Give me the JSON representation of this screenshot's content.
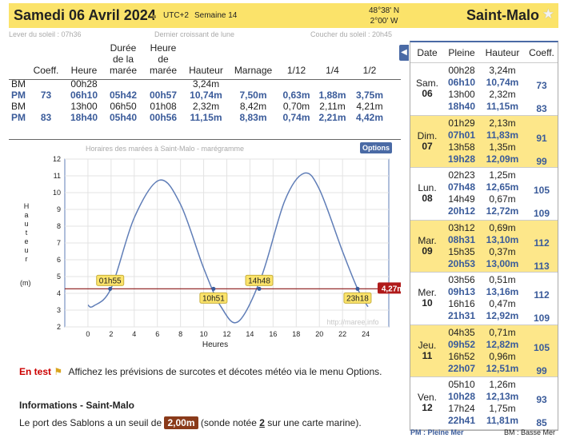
{
  "header": {
    "date": "Samedi 06 Avril 2024",
    "utc": "UTC+2",
    "week": "Semaine 14",
    "lat": "48°38' N",
    "lon": "2°00' W",
    "city": "Saint-Malo"
  },
  "sun": {
    "rise": "Lever du soleil : 07h36",
    "moon": "Dernier croissant de lune",
    "set": "Coucher du soleil : 20h45"
  },
  "table": {
    "headers": [
      "Coeff.",
      "Heure",
      "Durée de la marée",
      "Heure de marée",
      "Hauteur",
      "Marnage",
      "1/12",
      "1/4",
      "1/2"
    ],
    "rows": [
      {
        "type": "BM",
        "coeff": "",
        "heure": "00h28",
        "duree": "",
        "heure_maree": "",
        "hauteur": "3,24m",
        "marnage": "",
        "d12": "",
        "d4": "",
        "d2": ""
      },
      {
        "type": "PM",
        "coeff": "73",
        "heure": "06h10",
        "duree": "05h42",
        "heure_maree": "00h57",
        "hauteur": "10,74m",
        "marnage": "7,50m",
        "d12": "0,63m",
        "d4": "1,88m",
        "d2": "3,75m"
      },
      {
        "type": "BM",
        "coeff": "",
        "heure": "13h00",
        "duree": "06h50",
        "heure_maree": "01h08",
        "hauteur": "2,32m",
        "marnage": "8,42m",
        "d12": "0,70m",
        "d4": "2,11m",
        "d2": "4,21m"
      },
      {
        "type": "PM",
        "coeff": "83",
        "heure": "18h40",
        "duree": "05h40",
        "heure_maree": "00h56",
        "hauteur": "11,15m",
        "marnage": "8,83m",
        "d12": "0,74m",
        "d4": "2,21m",
        "d2": "4,42m"
      }
    ]
  },
  "chart": {
    "title": "Horaires des marées à Saint-Malo - marégramme",
    "options": "Options",
    "ylabel": "Hauteur",
    "yunit": "(m)",
    "xlabel": "Heures",
    "watermark": "http://maree.info",
    "level": "4,27m",
    "cross1": "01h55",
    "cross2": "10h51",
    "cross3": "14h48",
    "cross4": "23h18"
  },
  "chart_data": {
    "type": "line",
    "xlabel": "Heures",
    "ylabel": "Hauteur",
    "xlim": [
      -2,
      26
    ],
    "ylim": [
      2,
      12
    ],
    "x_ticks": [
      0,
      2,
      4,
      6,
      8,
      10,
      12,
      14,
      16,
      18,
      20,
      22,
      24
    ],
    "y_ticks": [
      2,
      3,
      4,
      5,
      6,
      7,
      8,
      9,
      10,
      11,
      12
    ],
    "series": [
      {
        "x": [
          0,
          0.47,
          2,
          4,
          6.17,
          8,
          10,
          11.5,
          13,
          15,
          17,
          18.67,
          20,
          22,
          23.3,
          24.2
        ],
        "y": [
          3.3,
          3.24,
          4.3,
          8.5,
          10.74,
          9.3,
          5.5,
          3.2,
          2.32,
          5,
          9.5,
          11.15,
          10.2,
          6.5,
          4.27,
          3.2
        ]
      }
    ],
    "threshold": 4.27
  },
  "side": {
    "headers": [
      "Date",
      "Pleine",
      "Hauteur",
      "Coeff."
    ],
    "days": [
      {
        "name": "Sam.",
        "num": "06",
        "yellow": false,
        "times": [
          "00h28",
          "06h10",
          "13h00",
          "18h40"
        ],
        "heights": [
          "3,24m",
          "10,74m",
          "2,32m",
          "11,15m"
        ],
        "pm": [
          1,
          3
        ],
        "coeffs": [
          "73",
          "83"
        ]
      },
      {
        "name": "Dim.",
        "num": "07",
        "yellow": true,
        "times": [
          "01h29",
          "07h01",
          "13h58",
          "19h28"
        ],
        "heights": [
          "2,13m",
          "11,83m",
          "1,35m",
          "12,09m"
        ],
        "pm": [
          1,
          3
        ],
        "coeffs": [
          "91",
          "99"
        ]
      },
      {
        "name": "Lun.",
        "num": "08",
        "yellow": false,
        "times": [
          "02h23",
          "07h48",
          "14h49",
          "20h12"
        ],
        "heights": [
          "1,25m",
          "12,65m",
          "0,67m",
          "12,72m"
        ],
        "pm": [
          1,
          3
        ],
        "coeffs": [
          "105",
          "109"
        ]
      },
      {
        "name": "Mar.",
        "num": "09",
        "yellow": true,
        "times": [
          "03h12",
          "08h31",
          "15h35",
          "20h53"
        ],
        "heights": [
          "0,69m",
          "13,10m",
          "0,37m",
          "13,00m"
        ],
        "pm": [
          1,
          3
        ],
        "coeffs": [
          "112",
          "113"
        ]
      },
      {
        "name": "Mer.",
        "num": "10",
        "yellow": false,
        "times": [
          "03h56",
          "09h13",
          "16h16",
          "21h31"
        ],
        "heights": [
          "0,51m",
          "13,16m",
          "0,47m",
          "12,92m"
        ],
        "pm": [
          1,
          3
        ],
        "coeffs": [
          "112",
          "109"
        ]
      },
      {
        "name": "Jeu.",
        "num": "11",
        "yellow": true,
        "times": [
          "04h35",
          "09h52",
          "16h52",
          "22h07"
        ],
        "heights": [
          "0,71m",
          "12,82m",
          "0,96m",
          "12,51m"
        ],
        "pm": [
          1,
          3
        ],
        "coeffs": [
          "105",
          "99"
        ]
      },
      {
        "name": "Ven.",
        "num": "12",
        "yellow": false,
        "times": [
          "05h10",
          "10h28",
          "17h24",
          "22h41"
        ],
        "heights": [
          "1,26m",
          "12,13m",
          "1,75m",
          "11,81m"
        ],
        "pm": [
          1,
          3
        ],
        "coeffs": [
          "93",
          "85"
        ]
      }
    ],
    "legend_pm": "PM : Pleine Mer",
    "legend_bm": "BM : Basse Mer"
  },
  "bottom": {
    "en_test": "En test",
    "en_test_text": "Affichez les prévisions de surcotes et décotes météo via le menu Options.",
    "info_title": "Informations - Saint-Malo",
    "port_text_1": "Le port des Sablons a un seuil de",
    "seuil": "2,00m",
    "port_text_2": "(sonde notée",
    "sonde": "2",
    "port_text_3": "sur une carte marine)."
  }
}
